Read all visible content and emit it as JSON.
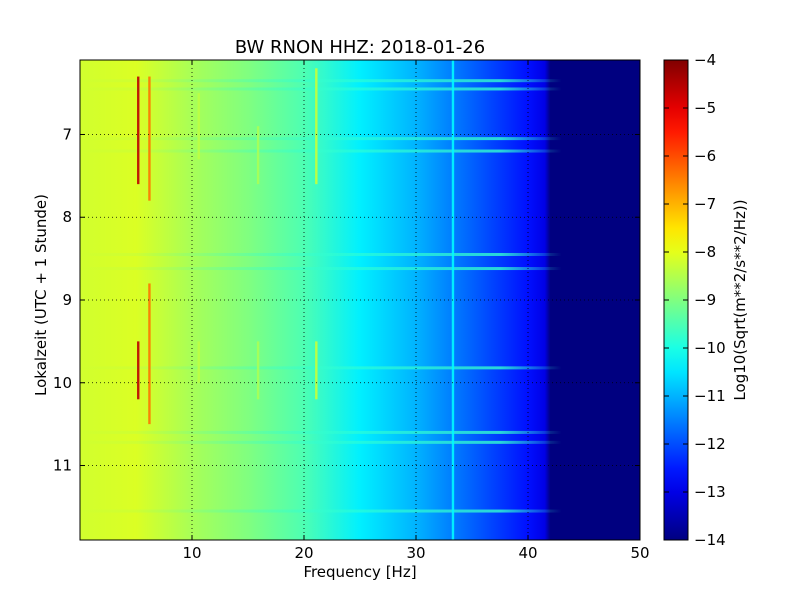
{
  "chart_data": {
    "type": "heatmap",
    "title": "BW RNON HHZ: 2018-01-26",
    "xlabel": "Frequency [Hz]",
    "ylabel": "Lokalzeit (UTC + 1 Stunde)",
    "xlim": [
      0,
      50
    ],
    "ylim": [
      6.1,
      11.9
    ],
    "y_inverted": true,
    "x_ticks": [
      10,
      20,
      30,
      40,
      50
    ],
    "x_tick_labels": [
      "10",
      "20",
      "30",
      "40",
      "50"
    ],
    "y_ticks": [
      7,
      8,
      9,
      10,
      11
    ],
    "y_tick_labels": [
      "7",
      "8",
      "9",
      "10",
      "11"
    ],
    "grid": true,
    "colormap": "jet",
    "colorbar": {
      "label": "Log10(Sqrt(m**2/s**2/Hz))",
      "range": [
        -14,
        -4
      ],
      "ticks": [
        -4,
        -5,
        -6,
        -7,
        -8,
        -9,
        -10,
        -11,
        -12,
        -13,
        -14
      ],
      "tick_labels": [
        "−4",
        "−5",
        "−6",
        "−7",
        "−8",
        "−9",
        "−10",
        "−11",
        "−12",
        "−13",
        "−14"
      ]
    },
    "spectrum_profile": {
      "frequency_hz": [
        0,
        5,
        10,
        15,
        20,
        25,
        30,
        35,
        40,
        41.5,
        42,
        50
      ],
      "level": [
        -8.2,
        -8.1,
        -8.6,
        -9.0,
        -9.5,
        -10.4,
        -11.0,
        -11.8,
        -12.6,
        -13.0,
        -14.0,
        -14.0
      ]
    },
    "vertical_lines": [
      {
        "frequency_hz": 5.2,
        "time_start": 6.3,
        "time_end": 7.6,
        "level": -4.6
      },
      {
        "frequency_hz": 5.2,
        "time_start": 9.5,
        "time_end": 10.2,
        "level": -4.6
      },
      {
        "frequency_hz": 6.2,
        "time_start": 6.3,
        "time_end": 7.8,
        "level": -6.4
      },
      {
        "frequency_hz": 6.2,
        "time_start": 8.8,
        "time_end": 10.5,
        "level": -6.4
      },
      {
        "frequency_hz": 10.6,
        "time_start": 6.5,
        "time_end": 7.3,
        "level": -8.4
      },
      {
        "frequency_hz": 10.6,
        "time_start": 9.5,
        "time_end": 10.0,
        "level": -8.4
      },
      {
        "frequency_hz": 15.9,
        "time_start": 6.9,
        "time_end": 7.6,
        "level": -8.6
      },
      {
        "frequency_hz": 15.9,
        "time_start": 9.5,
        "time_end": 10.2,
        "level": -8.6
      },
      {
        "frequency_hz": 21.1,
        "time_start": 6.2,
        "time_end": 7.6,
        "level": -8.3
      },
      {
        "frequency_hz": 21.1,
        "time_start": 9.5,
        "time_end": 10.2,
        "level": -8.3
      },
      {
        "frequency_hz": 33.3,
        "time_start": 6.1,
        "time_end": 11.9,
        "level": -10.3
      }
    ],
    "horizontal_bands": [
      {
        "time": 6.35,
        "level": -10.6
      },
      {
        "time": 6.45,
        "level": -10.4
      },
      {
        "time": 7.05,
        "level": -10.7
      },
      {
        "time": 7.2,
        "level": -10.7
      },
      {
        "time": 8.45,
        "level": -10.8
      },
      {
        "time": 8.62,
        "level": -10.5
      },
      {
        "time": 9.82,
        "level": -10.1
      },
      {
        "time": 10.6,
        "level": -11.0
      },
      {
        "time": 10.72,
        "level": -10.9
      },
      {
        "time": 11.55,
        "level": -11.0
      }
    ]
  }
}
